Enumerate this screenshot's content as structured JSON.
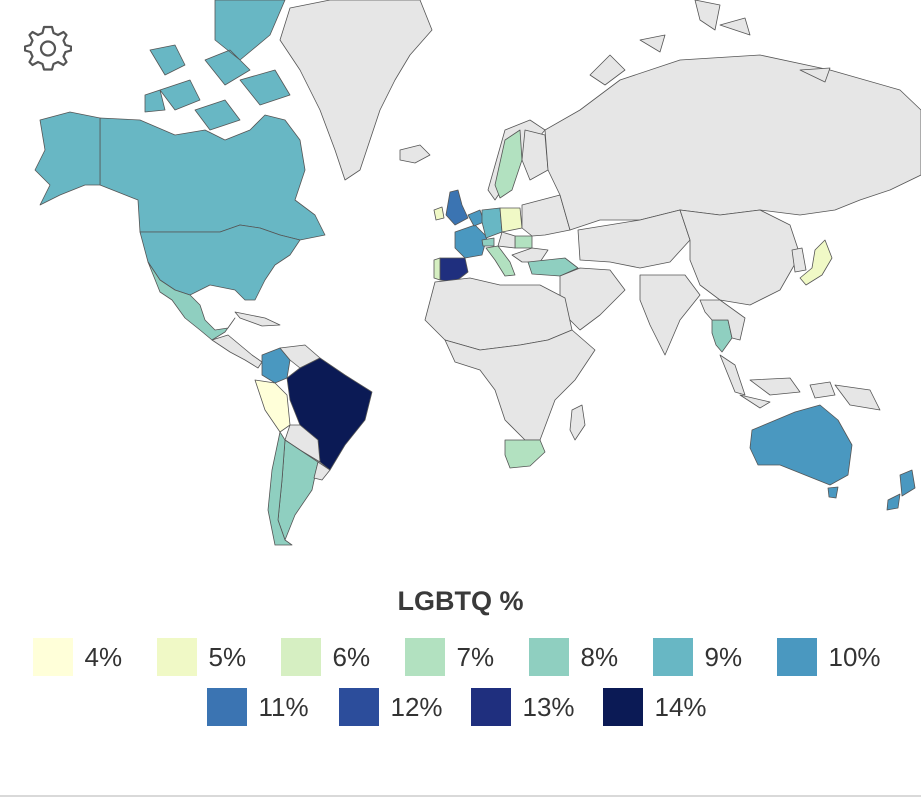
{
  "map": {
    "ocean_color": "#ffffff",
    "no_data_color": "#e6e6e6",
    "border_color": "#555555"
  },
  "settings": {
    "icon": "gear-icon"
  },
  "legend": {
    "title": "LGBTQ %",
    "items": [
      {
        "label": "4%",
        "color": "#ffffd9"
      },
      {
        "label": "5%",
        "color": "#f0f9c6"
      },
      {
        "label": "6%",
        "color": "#d6efc2"
      },
      {
        "label": "7%",
        "color": "#b2e1c0"
      },
      {
        "label": "8%",
        "color": "#8fcfc0"
      },
      {
        "label": "9%",
        "color": "#68b7c4"
      },
      {
        "label": "10%",
        "color": "#4a98c0"
      },
      {
        "label": "11%",
        "color": "#3b74b2"
      },
      {
        "label": "12%",
        "color": "#2c4d9b"
      },
      {
        "label": "13%",
        "color": "#1f2f7e"
      },
      {
        "label": "14%",
        "color": "#0b1a55"
      }
    ]
  },
  "countries": [
    {
      "name": "Canada",
      "value": 9,
      "color": "#68b7c4"
    },
    {
      "name": "United States",
      "value": 9,
      "color": "#68b7c4"
    },
    {
      "name": "Mexico",
      "value": 8,
      "color": "#8fcfc0"
    },
    {
      "name": "Colombia",
      "value": 10,
      "color": "#4a98c0"
    },
    {
      "name": "Peru",
      "value": 4,
      "color": "#ffffd9"
    },
    {
      "name": "Brazil",
      "value": 14,
      "color": "#0b1a55"
    },
    {
      "name": "Chile",
      "value": 8,
      "color": "#8fcfc0"
    },
    {
      "name": "Argentina",
      "value": 8,
      "color": "#8fcfc0"
    },
    {
      "name": "United Kingdom",
      "value": 11,
      "color": "#3b74b2"
    },
    {
      "name": "Ireland",
      "value": 5,
      "color": "#f0f9c6"
    },
    {
      "name": "France",
      "value": 10,
      "color": "#4a98c0"
    },
    {
      "name": "Spain",
      "value": 13,
      "color": "#1f2f7e"
    },
    {
      "name": "Portugal",
      "value": 6,
      "color": "#d6efc2"
    },
    {
      "name": "Belgium",
      "value": 9,
      "color": "#68b7c4"
    },
    {
      "name": "Netherlands",
      "value": 10,
      "color": "#4a98c0"
    },
    {
      "name": "Germany",
      "value": 9,
      "color": "#68b7c4"
    },
    {
      "name": "Poland",
      "value": 5,
      "color": "#f0f9c6"
    },
    {
      "name": "Sweden",
      "value": 7,
      "color": "#b2e1c0"
    },
    {
      "name": "Italy",
      "value": 7,
      "color": "#b2e1c0"
    },
    {
      "name": "Switzerland",
      "value": 8,
      "color": "#8fcfc0"
    },
    {
      "name": "Hungary",
      "value": 7,
      "color": "#b2e1c0"
    },
    {
      "name": "Turkey",
      "value": 8,
      "color": "#8fcfc0"
    },
    {
      "name": "South Africa",
      "value": 7,
      "color": "#b2e1c0"
    },
    {
      "name": "Japan",
      "value": 5,
      "color": "#f0f9c6"
    },
    {
      "name": "Thailand",
      "value": 8,
      "color": "#8fcfc0"
    },
    {
      "name": "Australia",
      "value": 10,
      "color": "#4a98c0"
    },
    {
      "name": "New Zealand",
      "value": 10,
      "color": "#4a98c0"
    }
  ]
}
